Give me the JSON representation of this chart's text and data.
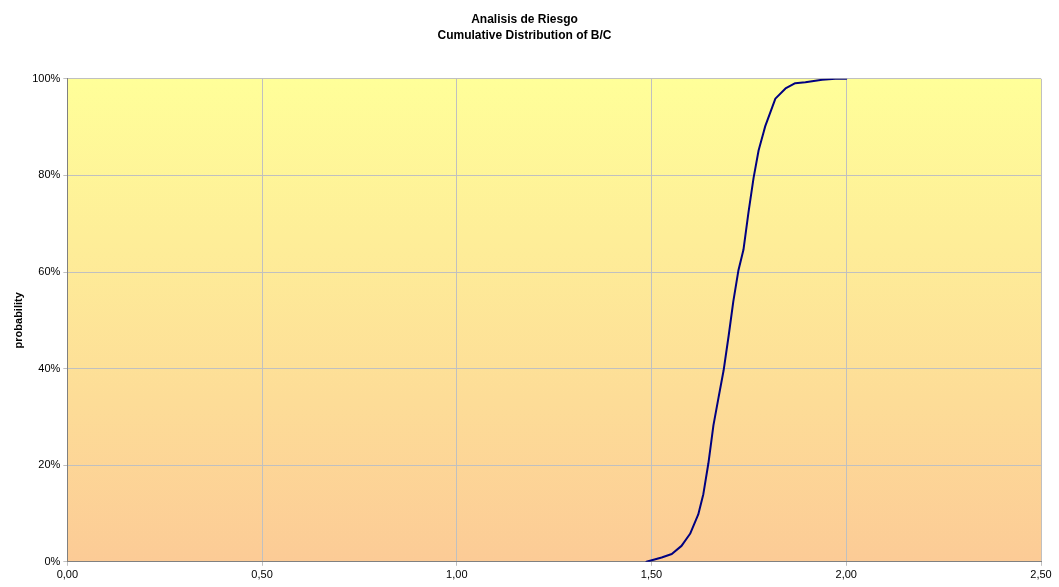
{
  "chart_data": {
    "type": "line",
    "title": "Analisis de Riesgo",
    "subtitle": "Cumulative Distribution of B/C",
    "ylabel": "probability",
    "x": [
      1.487,
      1.526,
      1.552,
      1.577,
      1.599,
      1.62,
      1.633,
      1.646,
      1.659,
      1.672,
      1.685,
      1.698,
      1.71,
      1.723,
      1.736,
      1.749,
      1.762,
      1.775,
      1.792,
      1.818,
      1.844,
      1.869,
      1.895,
      1.938,
      1.972,
      2.0
    ],
    "series": [
      {
        "color": "#000080",
        "values": [
          0,
          0.9,
          1.6,
          3.3,
          5.8,
          9.8,
          14,
          20.4,
          28.3,
          34,
          39.6,
          46.8,
          53.9,
          60.3,
          64.6,
          72.4,
          79.5,
          85.2,
          90.2,
          95.9,
          98,
          99.1,
          99.3,
          99.8,
          100,
          100
        ]
      }
    ],
    "xlim": [
      0,
      2.5
    ],
    "xticks": [
      {
        "value": 0,
        "label": "0,00"
      },
      {
        "value": 0.5,
        "label": "0,50"
      },
      {
        "value": 1,
        "label": "1,00"
      },
      {
        "value": 1.5,
        "label": "1,50"
      },
      {
        "value": 2,
        "label": "2,00"
      },
      {
        "value": 2.5,
        "label": "2,50"
      }
    ],
    "ylim": [
      0,
      100
    ],
    "yticks": [
      {
        "value": 0,
        "label": "0%"
      },
      {
        "value": 20,
        "label": "20%"
      },
      {
        "value": 40,
        "label": "40%"
      },
      {
        "value": 60,
        "label": "60%"
      },
      {
        "value": 80,
        "label": "80%"
      },
      {
        "value": 100,
        "label": "100%"
      }
    ],
    "grid": true,
    "legend": false,
    "marker": "none",
    "line_style": "solid"
  }
}
